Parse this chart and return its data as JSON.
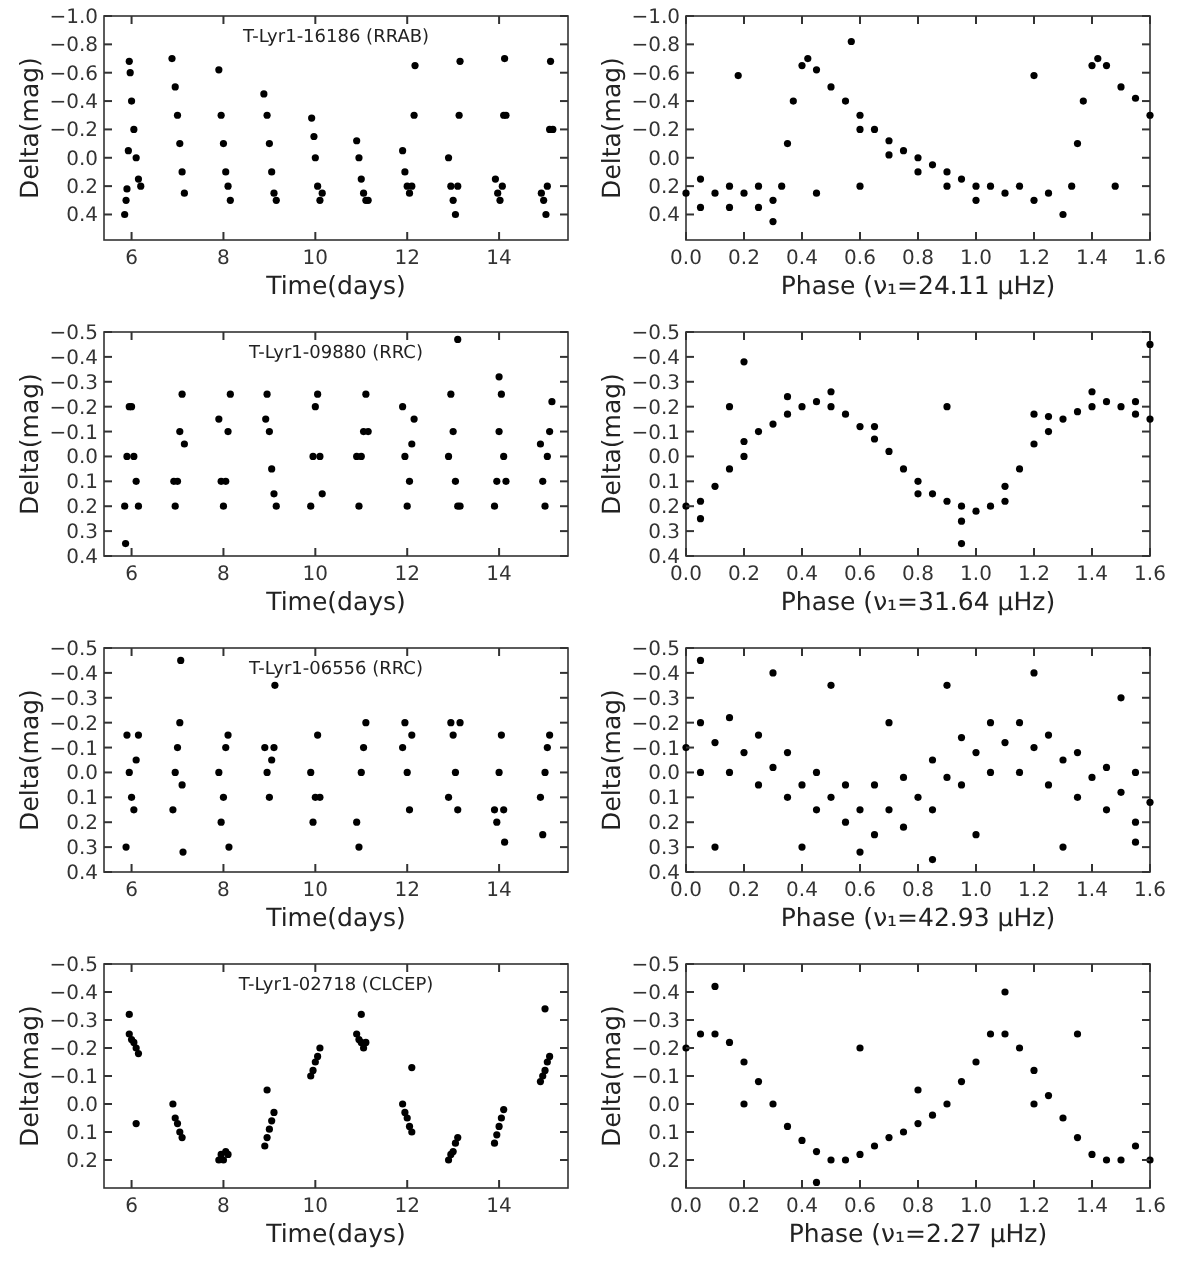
{
  "chart_data": [
    {
      "type": "scatter",
      "title": "T-Lyr1-16186 (RRAB)",
      "xlabel": "Time(days)",
      "ylabel": "Delta(mag)",
      "xlim": [
        5.4,
        15.5
      ],
      "ylim": [
        0.58,
        -1.0
      ],
      "xticks": [
        6,
        8,
        10,
        12,
        14
      ],
      "yticks": [
        {
          "value": -1.0,
          "label": "−1.0"
        },
        {
          "value": -0.8,
          "label": "−0.8"
        },
        {
          "value": -0.6,
          "label": "−0.6"
        },
        {
          "value": -0.4,
          "label": "−0.4"
        },
        {
          "value": -0.2,
          "label": "−0.2"
        },
        {
          "value": 0,
          "label": "0.0"
        },
        {
          "value": 0.2,
          "label": "0.2"
        },
        {
          "value": 0.4,
          "label": "0.4"
        }
      ],
      "marker": "circle",
      "x": [
        5.85,
        5.88,
        5.9,
        5.93,
        5.95,
        5.97,
        6.0,
        6.05,
        6.1,
        6.15,
        6.2,
        6.88,
        6.95,
        7.0,
        7.05,
        7.1,
        7.15,
        7.9,
        7.95,
        8.0,
        8.05,
        8.1,
        8.15,
        8.88,
        8.95,
        9.0,
        9.05,
        9.1,
        9.15,
        9.92,
        9.97,
        10.0,
        10.05,
        10.1,
        10.15,
        10.9,
        10.95,
        11.0,
        11.05,
        11.1,
        11.15,
        11.9,
        11.95,
        12.0,
        12.05,
        12.1,
        12.15,
        12.17,
        12.9,
        12.95,
        13.0,
        13.05,
        13.1,
        13.13,
        13.15,
        13.92,
        13.97,
        14.02,
        14.07,
        14.1,
        14.12,
        14.15,
        14.92,
        14.97,
        15.02,
        15.05,
        15.1,
        15.12,
        15.17
      ],
      "series": [
        {
          "color": "#000000",
          "values": [
            0.4,
            0.3,
            0.22,
            -0.05,
            -0.68,
            -0.6,
            -0.4,
            -0.2,
            0.0,
            0.15,
            0.2,
            -0.7,
            -0.5,
            -0.3,
            -0.1,
            0.1,
            0.25,
            -0.62,
            -0.3,
            -0.1,
            0.1,
            0.2,
            0.3,
            -0.45,
            -0.3,
            -0.1,
            0.1,
            0.25,
            0.3,
            -0.28,
            -0.15,
            0.0,
            0.2,
            0.3,
            0.25,
            -0.12,
            0.0,
            0.15,
            0.25,
            0.3,
            0.3,
            -0.05,
            0.1,
            0.2,
            0.25,
            0.2,
            -0.3,
            -0.65,
            0.0,
            0.2,
            0.3,
            0.4,
            0.2,
            -0.3,
            -0.68,
            0.15,
            0.25,
            0.3,
            0.2,
            -0.3,
            -0.7,
            -0.3,
            0.25,
            0.3,
            0.4,
            0.2,
            -0.2,
            -0.68,
            -0.2
          ]
        }
      ]
    },
    {
      "type": "scatter",
      "xlabel": "Phase (ν₁=24.11 μHz)",
      "ylabel": "Delta(mag)",
      "xlim": [
        0,
        1.6
      ],
      "ylim": [
        0.58,
        -1.0
      ],
      "xticks": [
        {
          "value": 0,
          "label": "0.0"
        },
        {
          "value": 0.2,
          "label": "0.2"
        },
        {
          "value": 0.4,
          "label": "0.4"
        },
        {
          "value": 0.6,
          "label": "0.6"
        },
        {
          "value": 0.8,
          "label": "0.8"
        },
        {
          "value": 1,
          "label": "1.0"
        },
        {
          "value": 1.2,
          "label": "1.2"
        },
        {
          "value": 1.4,
          "label": "1.4"
        },
        {
          "value": 1.6,
          "label": "1.6"
        }
      ],
      "yticks": [
        {
          "value": -1.0,
          "label": "−1.0"
        },
        {
          "value": -0.8,
          "label": "−0.8"
        },
        {
          "value": -0.6,
          "label": "−0.6"
        },
        {
          "value": -0.4,
          "label": "−0.4"
        },
        {
          "value": -0.2,
          "label": "−0.2"
        },
        {
          "value": 0,
          "label": "0.0"
        },
        {
          "value": 0.2,
          "label": "0.2"
        },
        {
          "value": 0.4,
          "label": "0.4"
        }
      ],
      "marker": "circle",
      "x": [
        0.0,
        0.05,
        0.05,
        0.1,
        0.15,
        0.15,
        0.2,
        0.25,
        0.25,
        0.3,
        0.3,
        0.33,
        0.35,
        0.37,
        0.4,
        0.42,
        0.45,
        0.5,
        0.55,
        0.6,
        0.6,
        0.65,
        0.7,
        0.7,
        0.75,
        0.8,
        0.8,
        0.85,
        0.9,
        0.9,
        0.95,
        1.0,
        1.0,
        1.05,
        1.1,
        1.15,
        1.2,
        1.25,
        1.3,
        1.33,
        1.35,
        1.37,
        1.4,
        1.42,
        1.45,
        1.5,
        1.55,
        1.6,
        0.18,
        0.45,
        0.6,
        1.2,
        1.48,
        0.57
      ],
      "series": [
        {
          "color": "#000000",
          "values": [
            0.25,
            0.15,
            0.35,
            0.25,
            0.2,
            0.35,
            0.25,
            0.2,
            0.35,
            0.3,
            0.45,
            0.2,
            -0.1,
            -0.4,
            -0.65,
            -0.7,
            -0.62,
            -0.5,
            -0.4,
            -0.3,
            -0.2,
            -0.2,
            -0.12,
            -0.02,
            -0.05,
            0.0,
            0.1,
            0.05,
            0.1,
            0.2,
            0.15,
            0.2,
            0.3,
            0.2,
            0.25,
            0.2,
            0.3,
            0.25,
            0.4,
            0.2,
            -0.1,
            -0.4,
            -0.65,
            -0.7,
            -0.65,
            -0.5,
            -0.42,
            -0.3,
            -0.58,
            0.25,
            0.2,
            -0.58,
            0.2,
            -0.82
          ]
        }
      ]
    },
    {
      "type": "scatter",
      "title": "T-Lyr1-09880 (RRC)",
      "xlabel": "Time(days)",
      "ylabel": "Delta(mag)",
      "xlim": [
        5.4,
        15.5
      ],
      "ylim": [
        0.4,
        -0.5
      ],
      "xticks": [
        6,
        8,
        10,
        12,
        14
      ],
      "yticks": [
        {
          "value": -0.5,
          "label": "−0.5"
        },
        {
          "value": -0.4,
          "label": "−0.4"
        },
        {
          "value": -0.3,
          "label": "−0.3"
        },
        {
          "value": -0.2,
          "label": "−0.2"
        },
        {
          "value": -0.1,
          "label": "−0.1"
        },
        {
          "value": 0,
          "label": "0.0"
        },
        {
          "value": 0.1,
          "label": "0.1"
        },
        {
          "value": 0.2,
          "label": "0.2"
        },
        {
          "value": 0.3,
          "label": "0.3"
        },
        {
          "value": 0.4,
          "label": "0.4"
        }
      ],
      "marker": "circle",
      "x": [
        5.85,
        5.9,
        5.95,
        6.0,
        6.05,
        6.1,
        6.15,
        5.87,
        6.92,
        6.95,
        7.0,
        7.05,
        7.1,
        7.15,
        7.9,
        7.95,
        8.0,
        8.05,
        8.1,
        8.15,
        8.92,
        8.95,
        9.0,
        9.05,
        9.1,
        9.15,
        9.9,
        9.95,
        10.0,
        10.05,
        10.1,
        10.15,
        10.9,
        10.95,
        11.0,
        11.05,
        11.1,
        11.15,
        11.9,
        11.95,
        12.0,
        12.05,
        12.1,
        12.15,
        12.9,
        12.95,
        13.0,
        13.05,
        13.1,
        13.15,
        13.1,
        13.9,
        13.95,
        14.0,
        14.05,
        14.1,
        14.15,
        14.9,
        14.95,
        15.0,
        15.05,
        15.1,
        15.15,
        14.0
      ],
      "series": [
        {
          "color": "#000000",
          "values": [
            0.2,
            0.0,
            -0.2,
            -0.2,
            0.0,
            0.1,
            0.2,
            0.35,
            0.1,
            0.2,
            0.1,
            -0.1,
            -0.25,
            -0.05,
            -0.15,
            0.1,
            0.2,
            0.1,
            -0.1,
            -0.25,
            -0.15,
            -0.25,
            -0.1,
            0.05,
            0.15,
            0.2,
            0.2,
            0.0,
            -0.2,
            -0.25,
            0.0,
            0.15,
            0.0,
            0.2,
            0.0,
            -0.1,
            -0.25,
            -0.1,
            -0.2,
            0.0,
            0.2,
            0.1,
            -0.05,
            -0.15,
            0.0,
            -0.25,
            -0.1,
            0.1,
            0.2,
            0.2,
            -0.47,
            0.2,
            0.1,
            -0.1,
            -0.25,
            0.0,
            0.1,
            -0.05,
            0.1,
            0.2,
            0.0,
            -0.1,
            -0.22,
            -0.32
          ]
        }
      ]
    },
    {
      "type": "scatter",
      "xlabel": "Phase (ν₁=31.64 μHz)",
      "ylabel": "Delta(mag)",
      "xlim": [
        0,
        1.6
      ],
      "ylim": [
        0.4,
        -0.5
      ],
      "xticks": [
        {
          "value": 0,
          "label": "0.0"
        },
        {
          "value": 0.2,
          "label": "0.2"
        },
        {
          "value": 0.4,
          "label": "0.4"
        },
        {
          "value": 0.6,
          "label": "0.6"
        },
        {
          "value": 0.8,
          "label": "0.8"
        },
        {
          "value": 1,
          "label": "1.0"
        },
        {
          "value": 1.2,
          "label": "1.2"
        },
        {
          "value": 1.4,
          "label": "1.4"
        },
        {
          "value": 1.6,
          "label": "1.6"
        }
      ],
      "yticks": [
        {
          "value": -0.5,
          "label": "−0.5"
        },
        {
          "value": -0.4,
          "label": "−0.4"
        },
        {
          "value": -0.3,
          "label": "−0.3"
        },
        {
          "value": -0.2,
          "label": "−0.2"
        },
        {
          "value": -0.1,
          "label": "−0.1"
        },
        {
          "value": 0,
          "label": "0.0"
        },
        {
          "value": 0.1,
          "label": "0.1"
        },
        {
          "value": 0.2,
          "label": "0.2"
        },
        {
          "value": 0.3,
          "label": "0.3"
        },
        {
          "value": 0.4,
          "label": "0.4"
        }
      ],
      "marker": "circle",
      "x": [
        0,
        0.05,
        0.1,
        0.15,
        0.2,
        0.25,
        0.3,
        0.35,
        0.4,
        0.45,
        0.5,
        0.55,
        0.6,
        0.65,
        0.7,
        0.75,
        0.8,
        0.85,
        0.9,
        0.95,
        1.0,
        1.05,
        1.1,
        1.15,
        1.2,
        1.25,
        1.3,
        1.35,
        1.4,
        1.45,
        1.5,
        1.55,
        1.6,
        0.05,
        0.2,
        0.35,
        0.5,
        0.65,
        0.8,
        0.95,
        1.1,
        1.25,
        1.4,
        1.55,
        0.15,
        0.9,
        1.2,
        0.2,
        0.95,
        1.6
      ],
      "series": [
        {
          "color": "#000000",
          "values": [
            0.2,
            0.18,
            0.12,
            0.05,
            0.0,
            -0.1,
            -0.13,
            -0.17,
            -0.2,
            -0.22,
            -0.2,
            -0.17,
            -0.12,
            -0.07,
            -0.02,
            0.05,
            0.1,
            0.15,
            0.18,
            0.2,
            0.22,
            0.2,
            0.12,
            0.05,
            -0.05,
            -0.1,
            -0.15,
            -0.18,
            -0.2,
            -0.22,
            -0.2,
            -0.17,
            -0.15,
            0.25,
            -0.06,
            -0.24,
            -0.26,
            -0.12,
            0.15,
            0.26,
            0.18,
            -0.16,
            -0.26,
            -0.22,
            -0.2,
            -0.2,
            -0.17,
            -0.38,
            0.35,
            -0.45
          ]
        }
      ]
    },
    {
      "type": "scatter",
      "title": "T-Lyr1-06556 (RRC)",
      "xlabel": "Time(days)",
      "ylabel": "Delta(mag)",
      "xlim": [
        5.4,
        15.5
      ],
      "ylim": [
        0.4,
        -0.5
      ],
      "xticks": [
        6,
        8,
        10,
        12,
        14
      ],
      "yticks": [
        {
          "value": -0.5,
          "label": "−0.5"
        },
        {
          "value": -0.4,
          "label": "−0.4"
        },
        {
          "value": -0.3,
          "label": "−0.3"
        },
        {
          "value": -0.2,
          "label": "−0.2"
        },
        {
          "value": -0.1,
          "label": "−0.1"
        },
        {
          "value": 0,
          "label": "0.0"
        },
        {
          "value": 0.1,
          "label": "0.1"
        },
        {
          "value": 0.2,
          "label": "0.2"
        },
        {
          "value": 0.3,
          "label": "0.3"
        },
        {
          "value": 0.4,
          "label": "0.4"
        }
      ],
      "marker": "circle",
      "x": [
        5.9,
        5.95,
        6.0,
        6.05,
        6.1,
        6.15,
        5.88,
        6.9,
        6.95,
        7.0,
        7.05,
        7.07,
        7.1,
        7.12,
        7.9,
        7.95,
        8.0,
        8.05,
        8.1,
        8.12,
        8.9,
        8.95,
        9.0,
        9.05,
        9.1,
        9.12,
        9.9,
        9.95,
        10.0,
        10.05,
        10.1,
        10.9,
        10.95,
        11.0,
        11.05,
        11.1,
        11.9,
        11.95,
        12.0,
        12.05,
        12.1,
        12.9,
        12.95,
        13.0,
        13.05,
        13.1,
        13.15,
        13.9,
        13.95,
        14.0,
        14.05,
        14.1,
        14.12,
        14.9,
        14.95,
        15.0,
        15.05,
        15.1
      ],
      "series": [
        {
          "color": "#000000",
          "values": [
            -0.15,
            0.0,
            0.1,
            0.15,
            -0.05,
            -0.15,
            0.3,
            0.15,
            0.0,
            -0.1,
            -0.2,
            -0.45,
            0.05,
            0.32,
            0.0,
            0.2,
            0.1,
            -0.1,
            -0.15,
            0.3,
            -0.1,
            0.0,
            0.1,
            -0.05,
            -0.1,
            -0.35,
            0.0,
            0.2,
            0.1,
            -0.15,
            0.1,
            0.2,
            0.3,
            0.0,
            -0.1,
            -0.2,
            -0.1,
            -0.2,
            0.0,
            0.15,
            -0.15,
            0.1,
            -0.2,
            -0.15,
            0.0,
            0.15,
            -0.2,
            0.15,
            0.2,
            0.0,
            -0.15,
            0.15,
            0.28,
            0.1,
            0.25,
            0.0,
            -0.1,
            -0.15
          ]
        }
      ]
    },
    {
      "type": "scatter",
      "xlabel": "Phase (ν₁=42.93 μHz)",
      "ylabel": "Delta(mag)",
      "xlim": [
        0,
        1.6
      ],
      "ylim": [
        0.4,
        -0.5
      ],
      "xticks": [
        {
          "value": 0,
          "label": "0.0"
        },
        {
          "value": 0.2,
          "label": "0.2"
        },
        {
          "value": 0.4,
          "label": "0.4"
        },
        {
          "value": 0.6,
          "label": "0.6"
        },
        {
          "value": 0.8,
          "label": "0.8"
        },
        {
          "value": 1,
          "label": "1.0"
        },
        {
          "value": 1.2,
          "label": "1.2"
        },
        {
          "value": 1.4,
          "label": "1.4"
        },
        {
          "value": 1.6,
          "label": "1.6"
        }
      ],
      "yticks": [
        {
          "value": -0.5,
          "label": "−0.5"
        },
        {
          "value": -0.4,
          "label": "−0.4"
        },
        {
          "value": -0.3,
          "label": "−0.3"
        },
        {
          "value": -0.2,
          "label": "−0.2"
        },
        {
          "value": -0.1,
          "label": "−0.1"
        },
        {
          "value": 0,
          "label": "0.0"
        },
        {
          "value": 0.1,
          "label": "0.1"
        },
        {
          "value": 0.2,
          "label": "0.2"
        },
        {
          "value": 0.3,
          "label": "0.3"
        },
        {
          "value": 0.4,
          "label": "0.4"
        }
      ],
      "marker": "circle",
      "x": [
        0,
        0.1,
        0.2,
        0.3,
        0.4,
        0.5,
        0.6,
        0.7,
        0.8,
        0.9,
        1.0,
        1.1,
        1.2,
        1.3,
        1.4,
        1.5,
        1.6,
        0.05,
        0.15,
        0.25,
        0.35,
        0.45,
        0.55,
        0.65,
        0.75,
        0.85,
        0.95,
        1.05,
        1.15,
        1.25,
        1.35,
        1.45,
        1.55,
        0.05,
        0.15,
        0.25,
        0.35,
        0.45,
        0.55,
        0.65,
        0.75,
        0.85,
        0.95,
        1.05,
        1.15,
        1.25,
        1.35,
        1.45,
        1.55,
        0.05,
        0.3,
        0.5,
        0.7,
        0.9,
        1.2,
        1.5,
        0.1,
        0.4,
        0.6,
        1.0,
        1.3,
        1.55,
        0.85
      ],
      "series": [
        {
          "color": "#000000",
          "values": [
            -0.1,
            -0.12,
            -0.08,
            -0.02,
            0.05,
            0.1,
            0.15,
            0.15,
            0.1,
            0.02,
            -0.08,
            -0.12,
            -0.1,
            -0.05,
            0.02,
            0.08,
            0.12,
            -0.2,
            -0.22,
            -0.15,
            -0.08,
            0.0,
            0.05,
            0.05,
            0.02,
            -0.05,
            -0.14,
            -0.2,
            -0.2,
            -0.15,
            -0.08,
            -0.02,
            0.0,
            0.0,
            0.0,
            0.05,
            0.1,
            0.15,
            0.2,
            0.25,
            0.22,
            0.15,
            0.05,
            0.0,
            0.0,
            0.05,
            0.1,
            0.15,
            0.2,
            -0.45,
            -0.4,
            -0.35,
            -0.2,
            -0.35,
            -0.4,
            -0.3,
            0.3,
            0.3,
            0.32,
            0.25,
            0.3,
            0.28,
            0.35
          ]
        }
      ]
    },
    {
      "type": "scatter",
      "title": "T-Lyr1-02718 (CLCEP)",
      "xlabel": "Time(days)",
      "ylabel": "Delta(mag)",
      "xlim": [
        5.4,
        15.5
      ],
      "ylim": [
        0.3,
        -0.5
      ],
      "xticks": [
        6,
        8,
        10,
        12,
        14
      ],
      "yticks": [
        {
          "value": -0.5,
          "label": "−0.5"
        },
        {
          "value": -0.4,
          "label": "−0.4"
        },
        {
          "value": -0.3,
          "label": "−0.3"
        },
        {
          "value": -0.2,
          "label": "−0.2"
        },
        {
          "value": -0.1,
          "label": "−0.1"
        },
        {
          "value": 0,
          "label": "0.0"
        },
        {
          "value": 0.1,
          "label": "0.1"
        },
        {
          "value": 0.2,
          "label": "0.2"
        }
      ],
      "marker": "circle",
      "x": [
        5.95,
        6.0,
        6.05,
        6.1,
        6.15,
        5.95,
        6.1,
        6.9,
        6.95,
        7.0,
        7.05,
        7.1,
        7.9,
        7.95,
        8.0,
        8.05,
        8.1,
        8.9,
        8.95,
        9.0,
        9.05,
        9.1,
        8.95,
        9.9,
        9.95,
        10.0,
        10.05,
        10.1,
        10.9,
        10.95,
        11.0,
        11.05,
        11.1,
        11.0,
        11.9,
        11.95,
        12.0,
        12.05,
        12.1,
        12.1,
        12.9,
        12.95,
        13.0,
        13.05,
        13.1,
        13.9,
        13.95,
        14.0,
        14.05,
        14.1,
        14.9,
        14.95,
        15.0,
        15.05,
        15.1,
        15.0
      ],
      "series": [
        {
          "color": "#000000",
          "values": [
            -0.25,
            -0.23,
            -0.22,
            -0.2,
            -0.18,
            -0.32,
            0.07,
            0.0,
            0.05,
            0.07,
            0.1,
            0.12,
            0.2,
            0.18,
            0.2,
            0.17,
            0.18,
            0.15,
            0.12,
            0.09,
            0.06,
            0.03,
            -0.05,
            -0.1,
            -0.12,
            -0.15,
            -0.17,
            -0.2,
            -0.25,
            -0.23,
            -0.22,
            -0.2,
            -0.22,
            -0.32,
            0.0,
            0.03,
            0.05,
            0.08,
            0.1,
            -0.13,
            0.2,
            0.18,
            0.17,
            0.14,
            0.12,
            0.14,
            0.11,
            0.08,
            0.05,
            0.02,
            -0.08,
            -0.1,
            -0.12,
            -0.15,
            -0.17,
            -0.34
          ]
        }
      ]
    },
    {
      "type": "scatter",
      "xlabel": "Phase (ν₁=2.27 μHz)",
      "ylabel": "Delta(mag)",
      "xlim": [
        0,
        1.6
      ],
      "ylim": [
        0.3,
        -0.5
      ],
      "xticks": [
        {
          "value": 0,
          "label": "0.0"
        },
        {
          "value": 0.2,
          "label": "0.2"
        },
        {
          "value": 0.4,
          "label": "0.4"
        },
        {
          "value": 0.6,
          "label": "0.6"
        },
        {
          "value": 0.8,
          "label": "0.8"
        },
        {
          "value": 1,
          "label": "1.0"
        },
        {
          "value": 1.2,
          "label": "1.2"
        },
        {
          "value": 1.4,
          "label": "1.4"
        },
        {
          "value": 1.6,
          "label": "1.6"
        }
      ],
      "yticks": [
        {
          "value": -0.5,
          "label": "−0.5"
        },
        {
          "value": -0.4,
          "label": "−0.4"
        },
        {
          "value": -0.3,
          "label": "−0.3"
        },
        {
          "value": -0.2,
          "label": "−0.2"
        },
        {
          "value": -0.1,
          "label": "−0.1"
        },
        {
          "value": 0,
          "label": "0.0"
        },
        {
          "value": 0.1,
          "label": "0.1"
        },
        {
          "value": 0.2,
          "label": "0.2"
        }
      ],
      "marker": "circle",
      "x": [
        0,
        0.05,
        0.1,
        0.15,
        0.2,
        0.25,
        0.3,
        0.35,
        0.4,
        0.45,
        0.5,
        0.55,
        0.6,
        0.65,
        0.7,
        0.75,
        0.8,
        0.85,
        0.9,
        0.95,
        1.0,
        1.05,
        1.1,
        1.15,
        1.2,
        1.25,
        1.3,
        1.35,
        1.4,
        1.45,
        1.5,
        1.55,
        1.6,
        0.1,
        0.2,
        0.6,
        1.1,
        1.2,
        0.45,
        1.35,
        0.8
      ],
      "series": [
        {
          "color": "#000000",
          "values": [
            -0.2,
            -0.25,
            -0.25,
            -0.22,
            -0.15,
            -0.08,
            0.0,
            0.08,
            0.13,
            0.17,
            0.2,
            0.2,
            0.18,
            0.15,
            0.12,
            0.1,
            0.07,
            0.04,
            0.0,
            -0.08,
            -0.15,
            -0.25,
            -0.25,
            -0.2,
            -0.12,
            -0.03,
            0.05,
            0.12,
            0.18,
            0.2,
            0.2,
            0.15,
            0.2,
            -0.42,
            0.0,
            -0.2,
            -0.4,
            0.0,
            0.28,
            -0.25,
            -0.05
          ]
        }
      ]
    }
  ]
}
